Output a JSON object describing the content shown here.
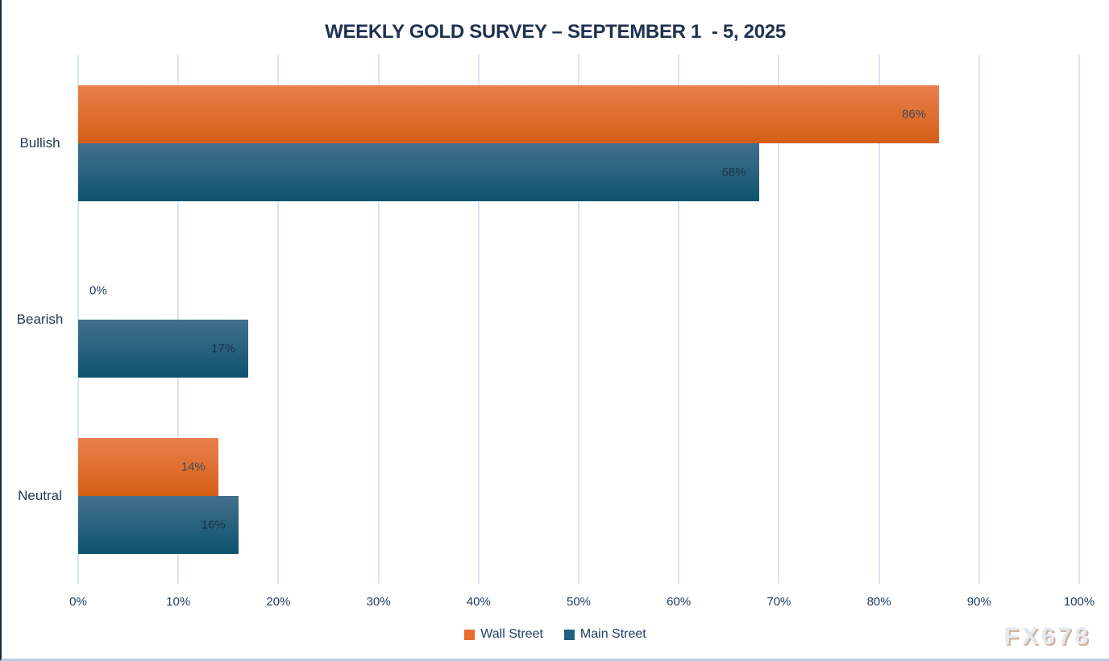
{
  "title": "WEEKLY GOLD SURVEY – SEPTEMBER 1  - 5, 2025",
  "watermark": "FX678",
  "chart_data": {
    "type": "bar",
    "orientation": "horizontal",
    "title": "WEEKLY GOLD SURVEY – SEPTEMBER 1  - 5, 2025",
    "categories": [
      "Bullish",
      "Bearish",
      "Neutral"
    ],
    "series": [
      {
        "name": "Wall Street",
        "values": [
          86,
          0,
          14
        ],
        "color_top": "#e8804e",
        "color_bottom": "#d65e15",
        "legend_color": "#e96d2d",
        "label_color": "#3f4a56"
      },
      {
        "name": "Main Street",
        "values": [
          68,
          17,
          16
        ],
        "color_top": "#44708d",
        "color_bottom": "#0d536f",
        "legend_color": "#1e6084",
        "label_color": "#16344a"
      }
    ],
    "value_suffix": "%",
    "data_labels": [
      "86%",
      "0%",
      "14%",
      "68%",
      "17%",
      "16%"
    ],
    "x_ticks": [
      "0%",
      "10%",
      "20%",
      "30%",
      "40%",
      "50%",
      "60%",
      "70%",
      "80%",
      "90%",
      "100%"
    ],
    "xlim": [
      0,
      100
    ],
    "grid": true,
    "legend_position": "bottom"
  },
  "colors": {
    "title": "#1f3150",
    "axis_label": "#1f3a5f",
    "category_label": "#24364f",
    "gridline": "#d9e5f2",
    "outside_label": "#1f3a5f",
    "left_border": "#1b2a3a",
    "bottom_border": "#b9cfe9",
    "watermark_fill": "#e3eaf2",
    "watermark_shadow": "#cdb29b"
  }
}
